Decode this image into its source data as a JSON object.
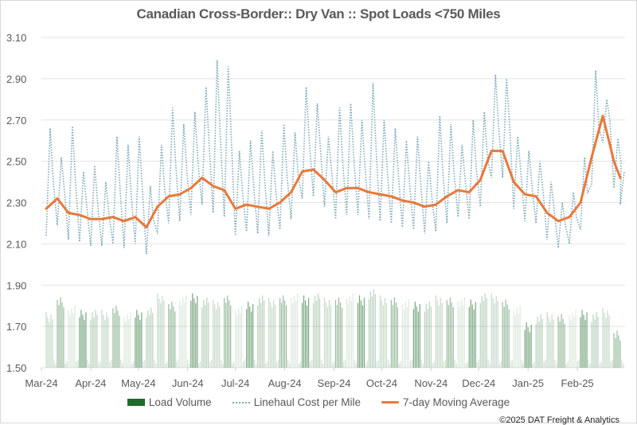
{
  "chart_data": {
    "type": "line",
    "title": "Canadian Cross-Border:: Dry Van :: Spot Loads <750 Miles",
    "xlabel": "",
    "ylabel": "",
    "ylim": [
      1.5,
      3.1
    ],
    "y_ticks": [
      "3.10",
      "2.90",
      "2.70",
      "2.50",
      "2.30",
      "2.10",
      "1.90",
      "1.70",
      "1.50"
    ],
    "x_ticks": [
      "Mar-24",
      "Apr-24",
      "May-24",
      "Jun-24",
      "Jul-24",
      "Aug-24",
      "Sep-24",
      "Oct-24",
      "Nov-24",
      "Dec-24",
      "Jan-25",
      "Feb-25"
    ],
    "grid": true,
    "legend_placement": "bottom",
    "dates": [
      "2024-03-04",
      "2024-03-11",
      "2024-03-18",
      "2024-03-25",
      "2024-04-01",
      "2024-04-08",
      "2024-04-15",
      "2024-04-22",
      "2024-04-29",
      "2024-05-06",
      "2024-05-13",
      "2024-05-20",
      "2024-05-27",
      "2024-06-03",
      "2024-06-10",
      "2024-06-17",
      "2024-06-24",
      "2024-07-01",
      "2024-07-08",
      "2024-07-15",
      "2024-07-22",
      "2024-07-29",
      "2024-08-05",
      "2024-08-12",
      "2024-08-19",
      "2024-08-26",
      "2024-09-02",
      "2024-09-09",
      "2024-09-16",
      "2024-09-23",
      "2024-09-30",
      "2024-10-07",
      "2024-10-14",
      "2024-10-21",
      "2024-10-28",
      "2024-11-04",
      "2024-11-11",
      "2024-11-18",
      "2024-11-25",
      "2024-12-02",
      "2024-12-09",
      "2024-12-16",
      "2024-12-23",
      "2024-12-30",
      "2025-01-06",
      "2025-01-13",
      "2025-01-20",
      "2025-01-27",
      "2025-02-03",
      "2025-02-10",
      "2025-02-17",
      "2025-02-24",
      "2025-02-28"
    ],
    "series": [
      {
        "name": "Load Volume",
        "kind": "bar",
        "color": "#1e6b2a",
        "values": [
          1.77,
          1.84,
          1.8,
          1.78,
          1.78,
          1.78,
          1.8,
          1.77,
          1.78,
          1.79,
          1.86,
          1.82,
          1.85,
          1.86,
          1.84,
          1.83,
          1.85,
          1.8,
          1.82,
          1.85,
          1.84,
          1.85,
          1.86,
          1.85,
          1.86,
          1.84,
          1.84,
          1.86,
          1.85,
          1.88,
          1.85,
          1.84,
          1.83,
          1.82,
          1.82,
          1.85,
          1.84,
          1.84,
          1.83,
          1.86,
          1.86,
          1.83,
          1.8,
          1.72,
          1.76,
          1.77,
          1.76,
          1.78,
          1.78,
          1.77,
          1.79,
          1.68,
          1.62
        ]
      },
      {
        "name": "Linehaul Cost per Mile",
        "kind": "dotted-line",
        "color": "#7aa7b8",
        "weekly_high": [
          2.66,
          2.52,
          2.67,
          2.45,
          2.48,
          2.4,
          2.62,
          2.58,
          2.62,
          2.38,
          2.58,
          2.76,
          2.68,
          2.74,
          2.86,
          2.99,
          2.96,
          2.55,
          2.6,
          2.65,
          2.55,
          2.68,
          2.64,
          2.86,
          2.78,
          2.62,
          2.76,
          2.78,
          2.7,
          2.88,
          2.7,
          2.66,
          2.6,
          2.62,
          2.5,
          2.72,
          2.68,
          2.58,
          2.7,
          2.74,
          2.92,
          2.9,
          2.62,
          2.55,
          2.5,
          2.4,
          2.3,
          2.35,
          2.52,
          2.94,
          2.8,
          2.61,
          2.45
        ],
        "weekly_low": [
          2.14,
          2.19,
          2.12,
          2.11,
          2.09,
          2.09,
          2.1,
          2.08,
          2.1,
          2.05,
          2.15,
          2.2,
          2.21,
          2.24,
          2.29,
          2.25,
          2.23,
          2.14,
          2.16,
          2.15,
          2.14,
          2.17,
          2.22,
          2.32,
          2.33,
          2.28,
          2.22,
          2.24,
          2.24,
          2.22,
          2.21,
          2.2,
          2.18,
          2.17,
          2.15,
          2.16,
          2.2,
          2.23,
          2.22,
          2.28,
          2.42,
          2.42,
          2.27,
          2.21,
          2.2,
          2.12,
          2.08,
          2.1,
          2.17,
          2.39,
          2.59,
          2.37,
          2.29
        ]
      },
      {
        "name": "7-day Moving Average",
        "kind": "line",
        "color": "#e8793a",
        "values": [
          2.27,
          2.32,
          2.25,
          2.24,
          2.22,
          2.22,
          2.23,
          2.21,
          2.23,
          2.18,
          2.28,
          2.33,
          2.34,
          2.37,
          2.42,
          2.38,
          2.36,
          2.27,
          2.29,
          2.28,
          2.27,
          2.3,
          2.35,
          2.45,
          2.46,
          2.41,
          2.35,
          2.37,
          2.37,
          2.35,
          2.34,
          2.33,
          2.31,
          2.3,
          2.28,
          2.29,
          2.33,
          2.36,
          2.35,
          2.41,
          2.55,
          2.55,
          2.4,
          2.34,
          2.33,
          2.25,
          2.21,
          2.23,
          2.3,
          2.52,
          2.72,
          2.5,
          2.42
        ]
      }
    ]
  },
  "credit": "©2025 DAT Freight & Analytics"
}
